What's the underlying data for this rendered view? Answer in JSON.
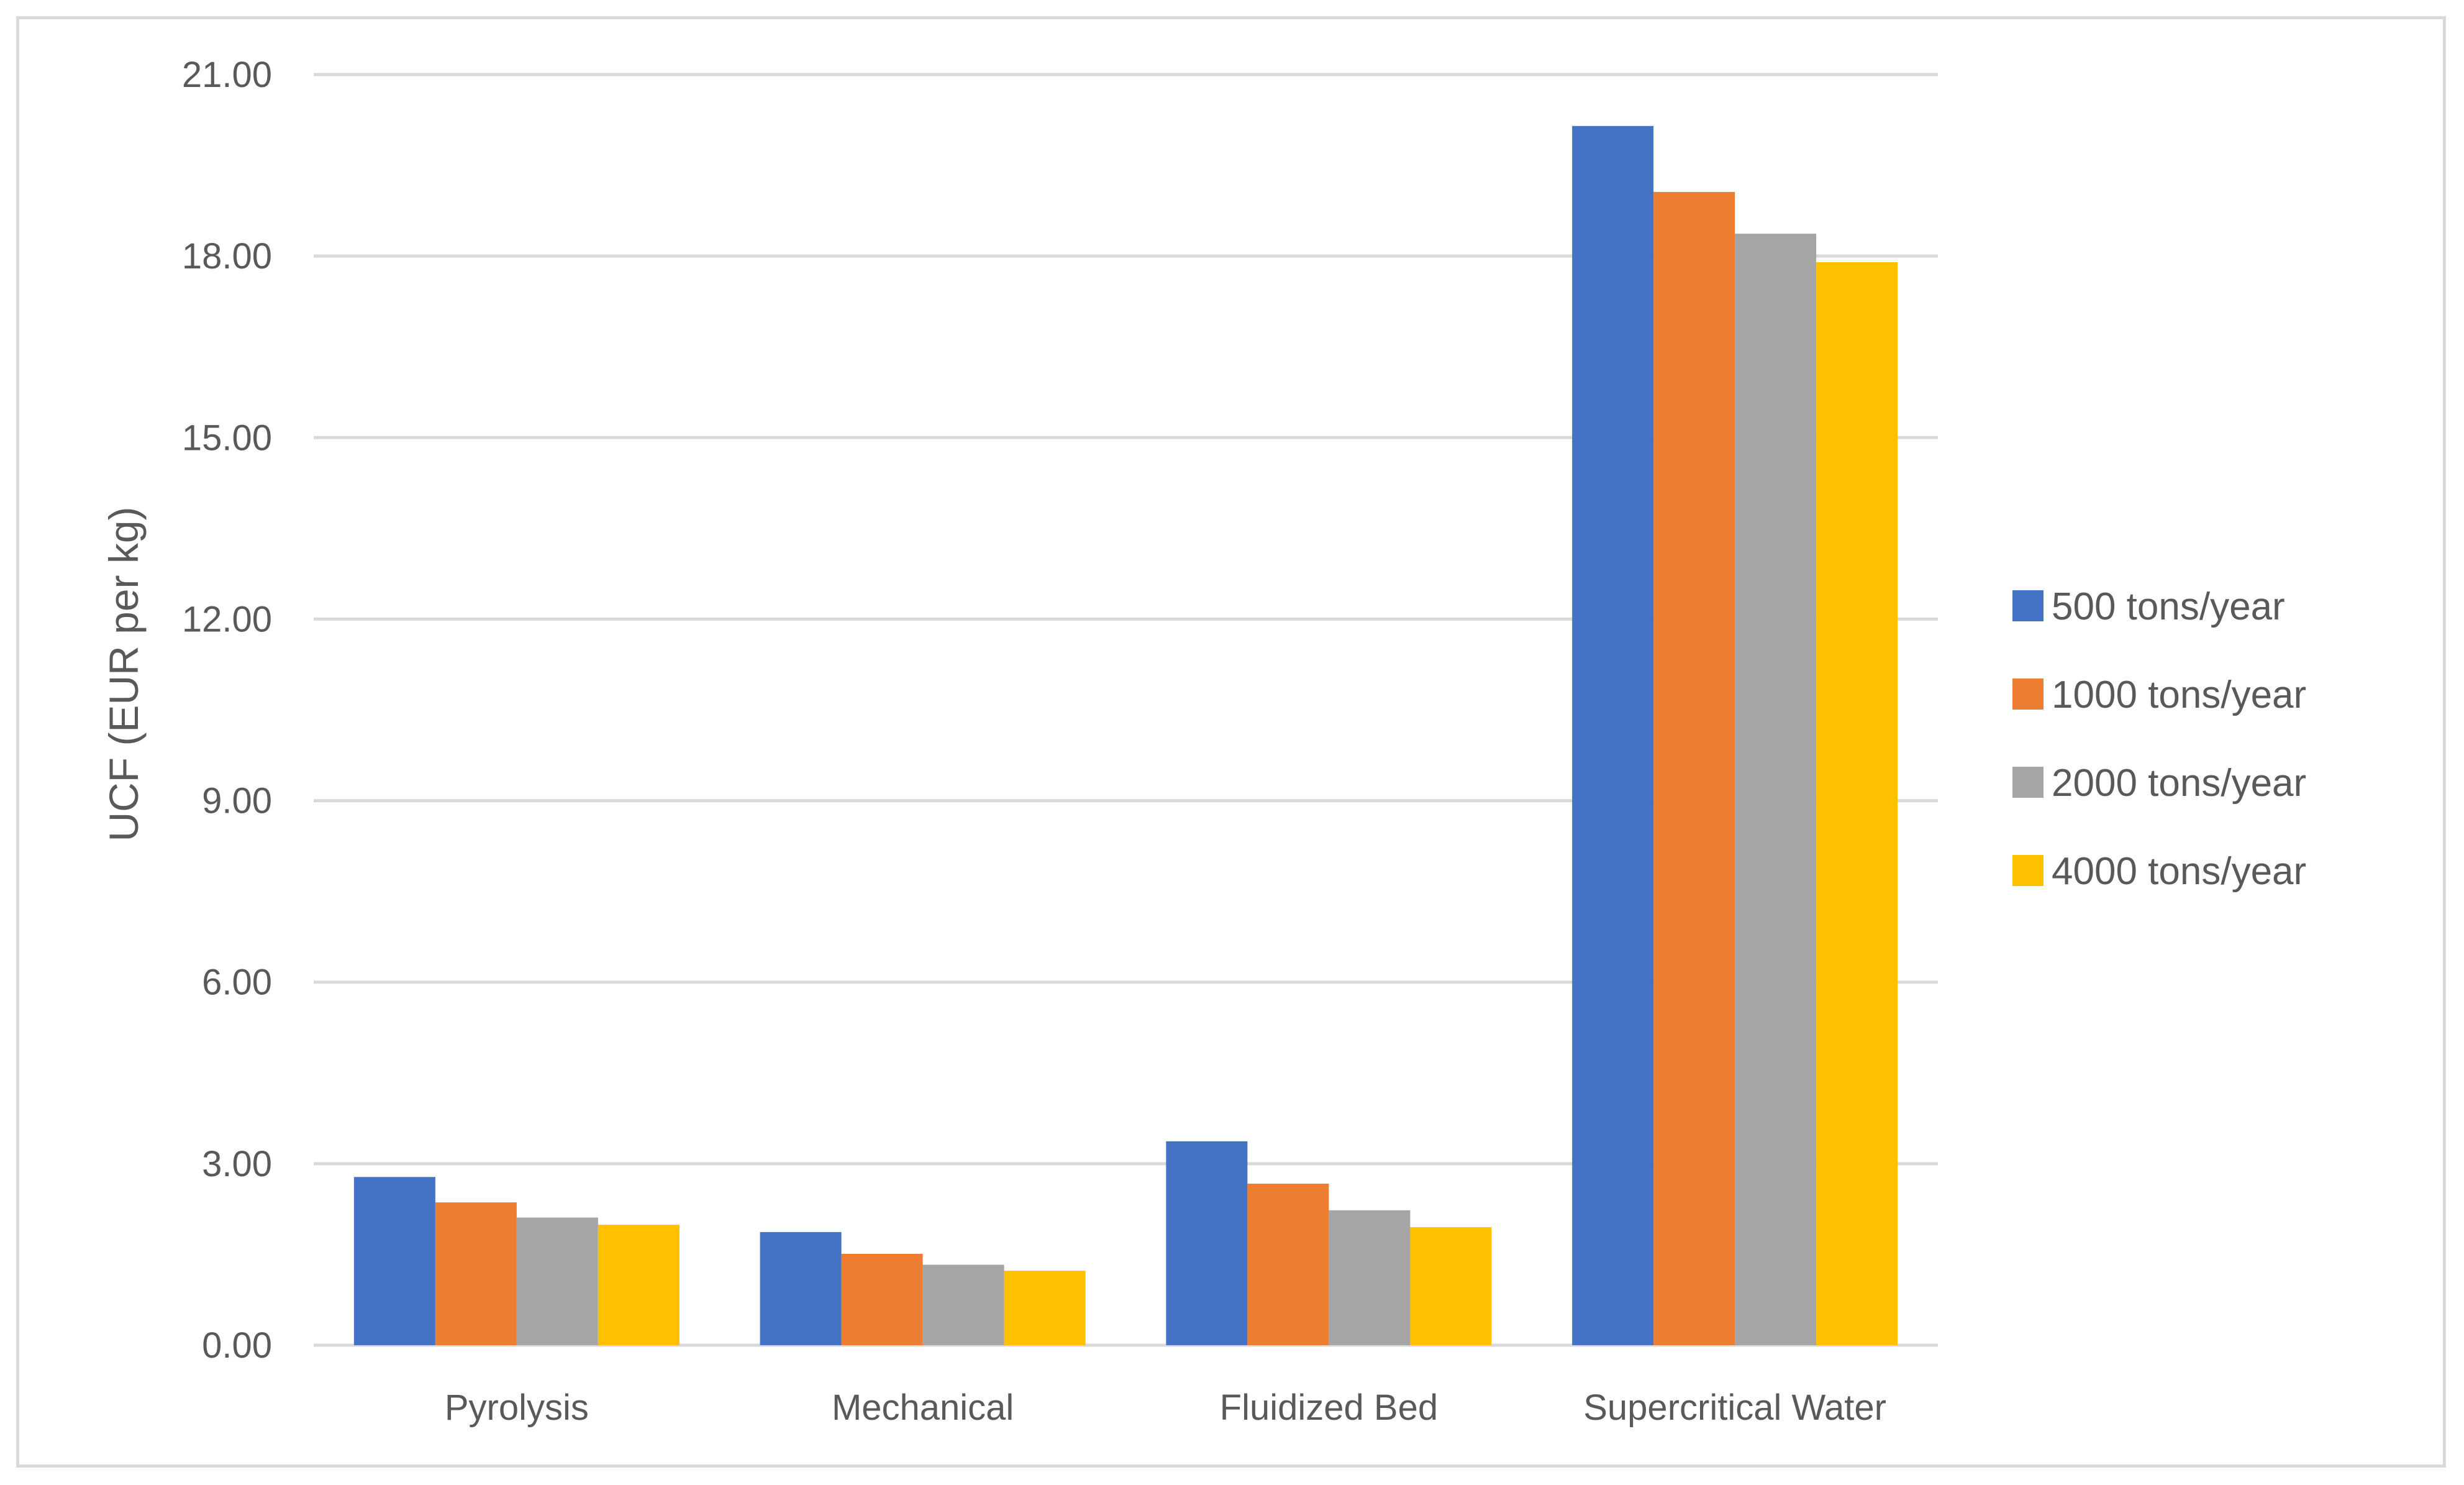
{
  "chart_data": {
    "type": "bar",
    "title": "",
    "xlabel": "",
    "ylabel": "UCF (EUR per kg)",
    "ylim": [
      0,
      21
    ],
    "yticks": [
      "0.00",
      "3.00",
      "6.00",
      "9.00",
      "12.00",
      "15.00",
      "18.00",
      "21.00"
    ],
    "ytick_values": [
      0,
      3,
      6,
      9,
      12,
      15,
      18,
      21
    ],
    "grid": true,
    "legend_position": "right",
    "categories": [
      "Pyrolysis",
      "Mechanical",
      "Fluidized Bed",
      "Supercritical Water"
    ],
    "series": [
      {
        "name": "500 tons/year",
        "color": "#4472c4",
        "values": [
          2.78,
          1.87,
          3.37,
          20.15
        ]
      },
      {
        "name": "1000 tons/year",
        "color": "#ed7d31",
        "values": [
          2.36,
          1.51,
          2.67,
          19.06
        ]
      },
      {
        "name": "2000 tons/year",
        "color": "#a5a5a5",
        "values": [
          2.11,
          1.33,
          2.23,
          18.37
        ]
      },
      {
        "name": "4000 tons/year",
        "color": "#ffc000",
        "values": [
          1.99,
          1.23,
          1.95,
          17.9
        ]
      }
    ]
  },
  "colors": {
    "gridline": "#d9d9d9",
    "text": "#595959",
    "border": "#d9d9d9"
  }
}
